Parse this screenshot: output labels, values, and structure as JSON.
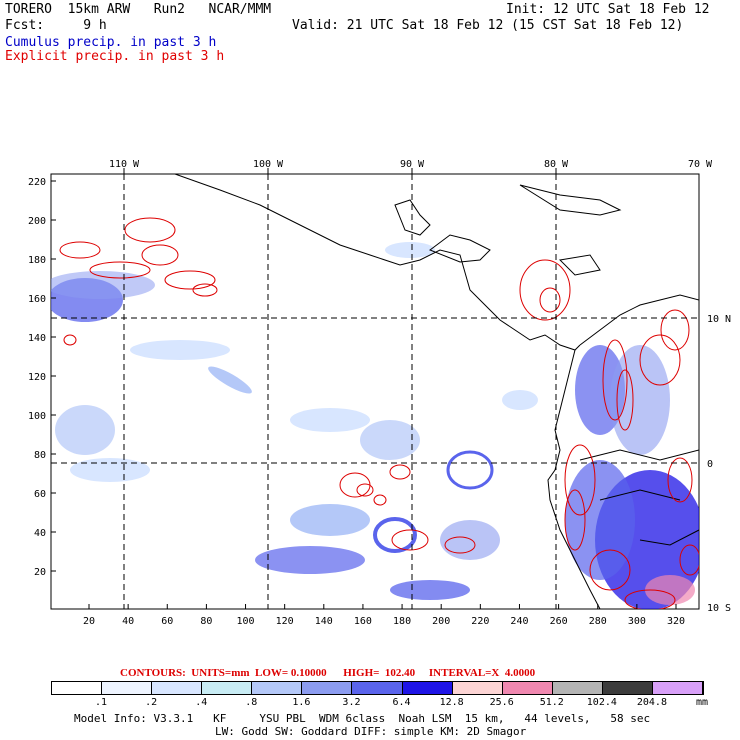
{
  "header": {
    "model": "TORERO  15km ARW   Run2   NCAR/MMM",
    "init": "Init: 12 UTC Sat 18 Feb 12",
    "fcst": "Fcst:     9 h",
    "valid": "Valid: 21 UTC Sat 18 Feb 12 (15 CST Sat 18 Feb 12)",
    "cumulus": "Cumulus precip. in past 3 h",
    "explicit": "Explicit precip. in past 3 h"
  },
  "map": {
    "lon_labels": [
      "110 W",
      "100 W",
      "90 W",
      "80 W",
      "70 W"
    ],
    "lat_labels": [
      "10 N",
      "0",
      "10 S"
    ],
    "y_ticks": [
      "220",
      "200",
      "180",
      "160",
      "140",
      "120",
      "100",
      "80",
      "60",
      "40",
      "20"
    ],
    "x_ticks": [
      "20",
      "40",
      "60",
      "80",
      "100",
      "120",
      "140",
      "160",
      "180",
      "200",
      "220",
      "240",
      "260",
      "280",
      "300",
      "320"
    ]
  },
  "contours_line": {
    "prefix": "CONTOURS:  UNITS=mm  LOW= 0.10000",
    "high": "HIGH=  102.40",
    "interval": "INTERVAL=X  4.0000"
  },
  "colorbar": {
    "labels": [
      ".1",
      ".2",
      ".4",
      ".8",
      "1.6",
      "3.2",
      "6.4",
      "12.8",
      "25.6",
      "51.2",
      "102.4",
      "204.8"
    ],
    "unit": "mm",
    "colors": [
      "#ffffff",
      "#eef4ff",
      "#d8e6ff",
      "#c8ecf4",
      "#b4c8f8",
      "#8c9cf0",
      "#5a64ec",
      "#1e14e6",
      "#fcd4d4",
      "#f088b0",
      "#b4b4b4",
      "#3c3c3c",
      "#d8a0f8"
    ]
  },
  "footer": {
    "line1": "Model Info: V3.3.1   KF     YSU PBL  WDM 6class  Noah LSM  15 km,   44 levels,   58 sec",
    "line2": "LW: Godd SW: Goddard DIFF: simple KM: 2D Smagor"
  },
  "colors": {
    "cumulus": "#0000c8",
    "explicit": "#e00000",
    "contour_red": "#dd0000"
  }
}
